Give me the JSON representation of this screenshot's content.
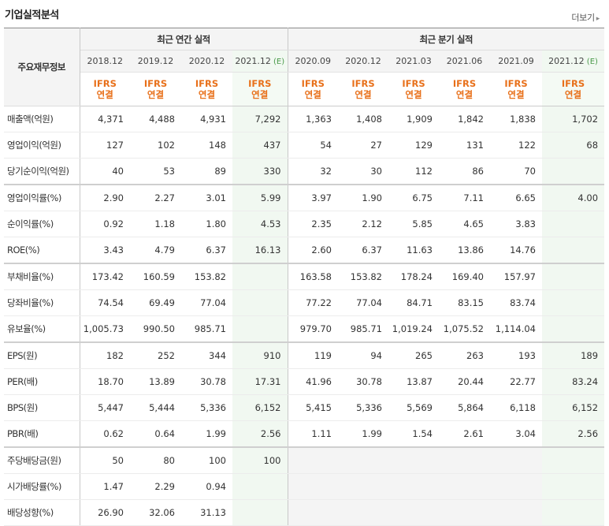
{
  "title": "기업실적분석",
  "more_label": "더보기",
  "header": {
    "label_head": "주요재무정보",
    "annual_group": "최근 연간 실적",
    "quarter_group": "최근 분기 실적",
    "periods": [
      {
        "date": "2018.12",
        "est": ""
      },
      {
        "date": "2019.12",
        "est": ""
      },
      {
        "date": "2020.12",
        "est": ""
      },
      {
        "date": "2021.12",
        "est": "(E)"
      },
      {
        "date": "2020.09",
        "est": ""
      },
      {
        "date": "2020.12",
        "est": ""
      },
      {
        "date": "2021.03",
        "est": ""
      },
      {
        "date": "2021.06",
        "est": ""
      },
      {
        "date": "2021.09",
        "est": ""
      },
      {
        "date": "2021.12",
        "est": "(E)"
      }
    ],
    "basis_top": "IFRS",
    "basis_bottom": "연결"
  },
  "rows": [
    {
      "label": "매출액(억원)",
      "values": [
        "4,371",
        "4,488",
        "4,931",
        "7,292",
        "1,363",
        "1,408",
        "1,909",
        "1,842",
        "1,838",
        "1,702"
      ]
    },
    {
      "label": "영업이익(억원)",
      "values": [
        "127",
        "102",
        "148",
        "437",
        "54",
        "27",
        "129",
        "131",
        "122",
        "68"
      ]
    },
    {
      "label": "당기순이익(억원)",
      "values": [
        "40",
        "53",
        "89",
        "330",
        "32",
        "30",
        "112",
        "86",
        "70",
        ""
      ]
    },
    {
      "label": "영업이익률(%)",
      "values": [
        "2.90",
        "2.27",
        "3.01",
        "5.99",
        "3.97",
        "1.90",
        "6.75",
        "7.11",
        "6.65",
        "4.00"
      ]
    },
    {
      "label": "순이익률(%)",
      "values": [
        "0.92",
        "1.18",
        "1.80",
        "4.53",
        "2.35",
        "2.12",
        "5.85",
        "4.65",
        "3.83",
        ""
      ]
    },
    {
      "label": "ROE(%)",
      "values": [
        "3.43",
        "4.79",
        "6.37",
        "16.13",
        "2.60",
        "6.37",
        "11.63",
        "13.86",
        "14.76",
        ""
      ]
    },
    {
      "label": "부채비율(%)",
      "values": [
        "173.42",
        "160.59",
        "153.82",
        "",
        "163.58",
        "153.82",
        "178.24",
        "169.40",
        "157.97",
        ""
      ]
    },
    {
      "label": "당좌비율(%)",
      "values": [
        "74.54",
        "69.49",
        "77.04",
        "",
        "77.22",
        "77.04",
        "84.71",
        "83.15",
        "83.74",
        ""
      ]
    },
    {
      "label": "유보율(%)",
      "values": [
        "1,005.73",
        "990.50",
        "985.71",
        "",
        "979.70",
        "985.71",
        "1,019.24",
        "1,075.52",
        "1,114.04",
        ""
      ]
    },
    {
      "label": "EPS(원)",
      "values": [
        "182",
        "252",
        "344",
        "910",
        "119",
        "94",
        "265",
        "263",
        "193",
        "189"
      ]
    },
    {
      "label": "PER(배)",
      "values": [
        "18.70",
        "13.89",
        "30.78",
        "17.31",
        "41.96",
        "30.78",
        "13.87",
        "20.44",
        "22.77",
        "83.24"
      ]
    },
    {
      "label": "BPS(원)",
      "values": [
        "5,447",
        "5,444",
        "5,336",
        "6,152",
        "5,415",
        "5,336",
        "5,569",
        "5,864",
        "6,118",
        "6,152"
      ]
    },
    {
      "label": "PBR(배)",
      "values": [
        "0.62",
        "0.64",
        "1.99",
        "2.56",
        "1.11",
        "1.99",
        "1.54",
        "2.61",
        "3.04",
        "2.56"
      ]
    },
    {
      "label": "주당배당금(원)",
      "values": [
        "50",
        "80",
        "100",
        "100",
        "",
        "",
        "",
        "",
        "",
        ""
      ]
    },
    {
      "label": "시가배당률(%)",
      "values": [
        "1.47",
        "2.29",
        "0.94",
        "",
        "",
        "",
        "",
        "",
        "",
        ""
      ]
    },
    {
      "label": "배당성향(%)",
      "values": [
        "26.90",
        "32.06",
        "31.13",
        "",
        "",
        "",
        "",
        "",
        "",
        ""
      ]
    }
  ],
  "colors": {
    "basis": "#e8701a",
    "estimate_bg": "#f1f8f1",
    "estimate_tag": "#4a9a4a"
  }
}
